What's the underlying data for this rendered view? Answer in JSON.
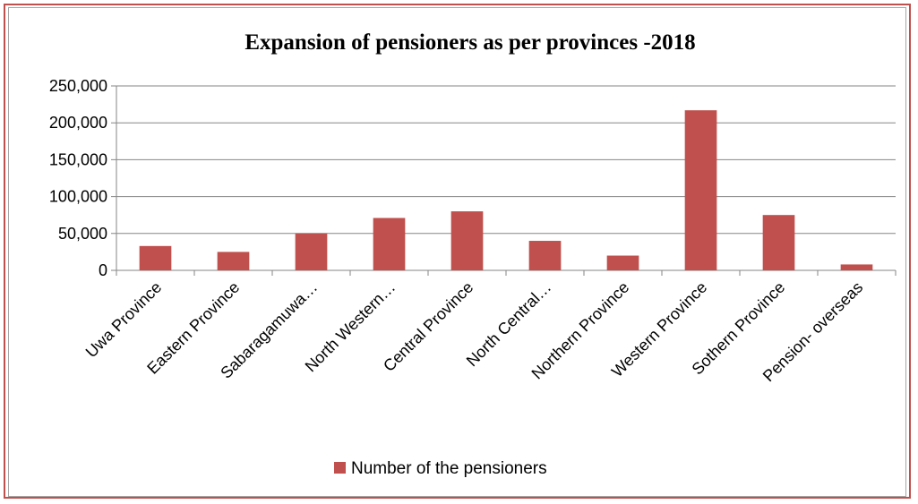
{
  "chart_data": {
    "type": "bar",
    "title": "Expansion of pensioners as per provinces -2018",
    "xlabel": "",
    "ylabel": "",
    "categories": [
      "Uwa Province",
      "Eastern Province",
      "Sabaragamuwa…",
      "North Western…",
      "Central Province",
      "North Central…",
      "Northern Province",
      "Western Province",
      "Sothern Province",
      "Pension- overseas"
    ],
    "series": [
      {
        "name": "Number of the pensioners",
        "color": "#c0504d",
        "values": [
          33000,
          25000,
          50000,
          71000,
          80000,
          40000,
          20000,
          217000,
          75000,
          8000
        ]
      }
    ],
    "ylim": [
      0,
      250000
    ],
    "yticks": [
      0,
      50000,
      100000,
      150000,
      200000,
      250000
    ],
    "ytick_labels": [
      "0",
      "50,000",
      "100,000",
      "150,000",
      "200,000",
      "250,000"
    ],
    "grid": true,
    "legend_position": "bottom"
  }
}
